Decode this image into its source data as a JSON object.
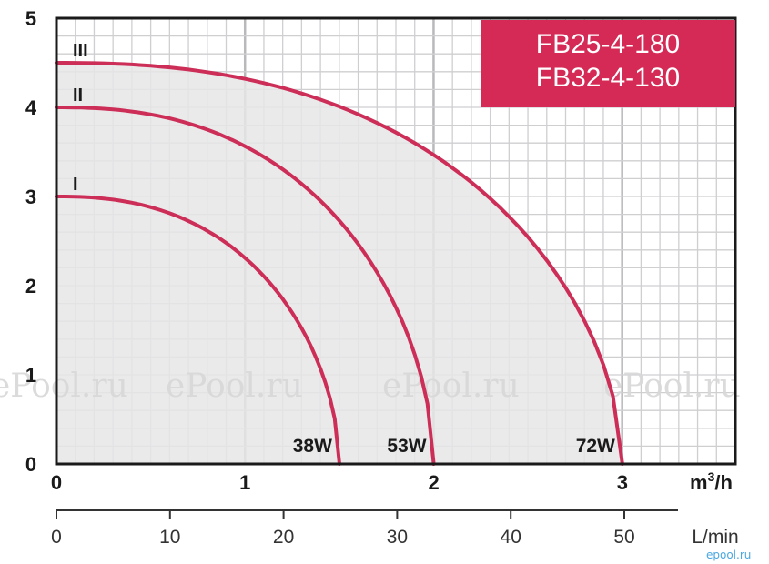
{
  "chart_data": {
    "type": "line",
    "title": [
      "FB25-4-180",
      "FB32-4-130"
    ],
    "x_unit_primary": "m³/h",
    "x_unit_primary_base": "m",
    "x_unit_primary_sup": "3",
    "x_unit_primary_suffix": "/h",
    "x_unit_secondary": "L/min",
    "xlim": [
      0,
      3.6
    ],
    "ylim": [
      0,
      5
    ],
    "x_ticks": [
      0,
      1,
      2,
      3
    ],
    "y_ticks": [
      0,
      1,
      2,
      3,
      4,
      5
    ],
    "secondary_x_ticks": [
      0,
      10,
      20,
      30,
      40,
      50
    ],
    "grid": true,
    "series": [
      {
        "name": "I",
        "power": "38W",
        "x": [
          0,
          0.5,
          1.0,
          1.25,
          1.4,
          1.5
        ],
        "y": [
          3.0,
          2.89,
          2.56,
          2.14,
          1.7,
          0
        ]
      },
      {
        "name": "II",
        "power": "53W",
        "x": [
          0,
          0.7,
          1.3,
          1.7,
          1.9,
          2.0
        ],
        "y": [
          4.0,
          3.7,
          3.1,
          2.2,
          1.4,
          0
        ]
      },
      {
        "name": "III",
        "power": "72W",
        "x": [
          0,
          1.0,
          2.0,
          2.6,
          2.85,
          3.0
        ],
        "y": [
          4.5,
          4.2,
          3.2,
          2.1,
          1.4,
          0
        ]
      }
    ],
    "colors": {
      "curve": "#cc2e58",
      "fill": "#e6e6e8",
      "grid": "#cfcfd2",
      "title_bg": "#d42a55"
    }
  },
  "watermark": {
    "text": "ePool.ru"
  },
  "logo": {
    "text": "epool.ru"
  }
}
